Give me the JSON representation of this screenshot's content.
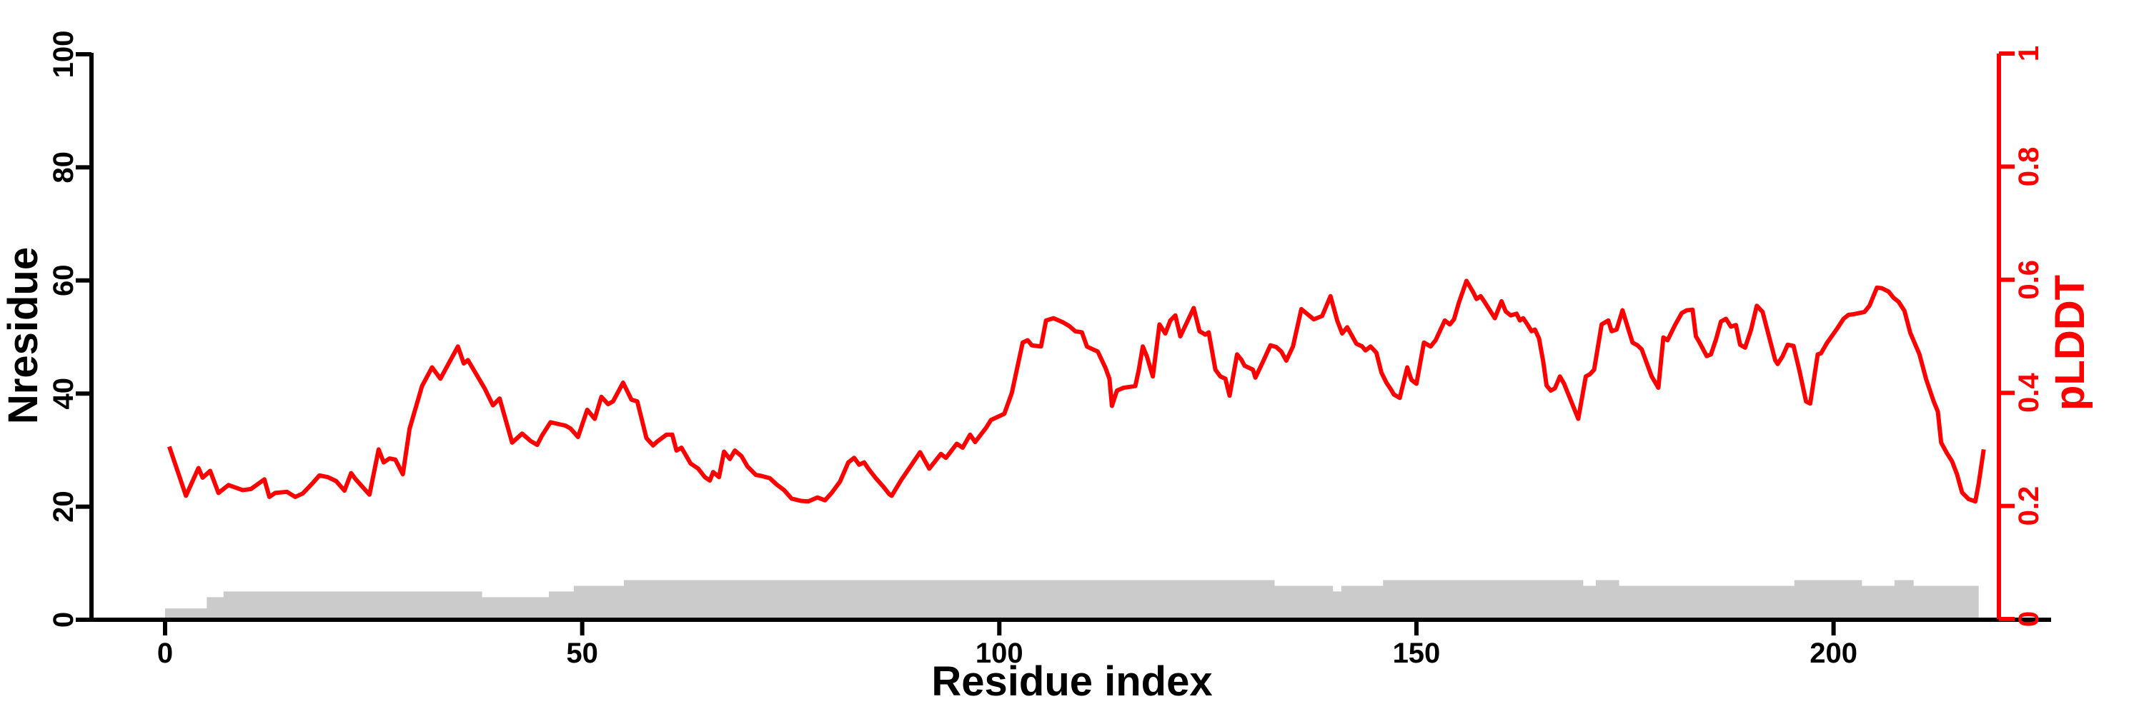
{
  "chart_data": {
    "type": "line",
    "title": "",
    "xlabel": "Residue index",
    "ylabel_left": "Nresidue",
    "ylabel_right": "pLDDT",
    "x_axis": {
      "range": [
        0,
        226
      ],
      "ticks": [
        0,
        50,
        100,
        150,
        200
      ],
      "tick_labels": [
        "0",
        "50",
        "100",
        "150",
        "200"
      ]
    },
    "y_axis_left": {
      "range": [
        0,
        100
      ],
      "ticks": [
        0,
        20,
        40,
        60,
        80,
        100
      ],
      "tick_labels": [
        "0",
        "20",
        "40",
        "60",
        "80",
        "100"
      ]
    },
    "y_axis_right": {
      "range": [
        0,
        1
      ],
      "ticks": [
        0,
        0.2,
        0.4,
        0.6,
        0.8,
        1
      ],
      "tick_labels": [
        "0",
        "0.2",
        "0.4",
        "0.6",
        "0.8",
        "1"
      ]
    },
    "grid": "off",
    "legend": "none",
    "colors": {
      "plddt_line": "#fe0000",
      "nresidue_bars": "#cbcbcb",
      "axis": "#000000",
      "background": "#ffffff"
    },
    "series": [
      {
        "name": "pLDDT",
        "axis": "right",
        "style": "line",
        "points": [
          [
            0.5,
            0.305
          ],
          [
            2.5,
            0.218
          ],
          [
            4,
            0.267
          ],
          [
            4.5,
            0.25
          ],
          [
            5.4,
            0.262
          ],
          [
            6.4,
            0.223
          ],
          [
            7.6,
            0.237
          ],
          [
            9.3,
            0.228
          ],
          [
            10.3,
            0.23
          ],
          [
            11.9,
            0.247
          ],
          [
            12.5,
            0.216
          ],
          [
            13.2,
            0.223
          ],
          [
            14.6,
            0.225
          ],
          [
            15.6,
            0.216
          ],
          [
            16.5,
            0.222
          ],
          [
            17.6,
            0.239
          ],
          [
            18.5,
            0.254
          ],
          [
            19.5,
            0.251
          ],
          [
            20.5,
            0.244
          ],
          [
            21.5,
            0.227
          ],
          [
            22.3,
            0.258
          ],
          [
            22.8,
            0.248
          ],
          [
            24.5,
            0.22
          ],
          [
            25.6,
            0.3
          ],
          [
            26.2,
            0.277
          ],
          [
            26.9,
            0.284
          ],
          [
            27.6,
            0.282
          ],
          [
            28.5,
            0.256
          ],
          [
            29.3,
            0.336
          ],
          [
            30.8,
            0.412
          ],
          [
            32,
            0.445
          ],
          [
            33,
            0.425
          ],
          [
            35.1,
            0.482
          ],
          [
            35.8,
            0.452
          ],
          [
            36.3,
            0.458
          ],
          [
            38.3,
            0.408
          ],
          [
            39.3,
            0.378
          ],
          [
            40.1,
            0.39
          ],
          [
            41.6,
            0.312
          ],
          [
            42.8,
            0.328
          ],
          [
            43.8,
            0.315
          ],
          [
            44.6,
            0.308
          ],
          [
            45.2,
            0.325
          ],
          [
            46.2,
            0.348
          ],
          [
            48,
            0.342
          ],
          [
            48.6,
            0.337
          ],
          [
            49.5,
            0.322
          ],
          [
            50.6,
            0.37
          ],
          [
            51.5,
            0.354
          ],
          [
            52.3,
            0.393
          ],
          [
            53.1,
            0.38
          ],
          [
            53.7,
            0.385
          ],
          [
            54.9,
            0.418
          ],
          [
            55.9,
            0.388
          ],
          [
            56.6,
            0.385
          ],
          [
            57.7,
            0.32
          ],
          [
            58.5,
            0.307
          ],
          [
            59,
            0.314
          ],
          [
            60.1,
            0.326
          ],
          [
            60.8,
            0.326
          ],
          [
            61.3,
            0.298
          ],
          [
            61.9,
            0.303
          ],
          [
            63,
            0.275
          ],
          [
            63.9,
            0.266
          ],
          [
            64.7,
            0.251
          ],
          [
            65.3,
            0.245
          ],
          [
            65.7,
            0.26
          ],
          [
            66.4,
            0.251
          ],
          [
            67,
            0.296
          ],
          [
            67.7,
            0.283
          ],
          [
            68.3,
            0.298
          ],
          [
            69.1,
            0.288
          ],
          [
            69.8,
            0.27
          ],
          [
            70.8,
            0.255
          ],
          [
            71.5,
            0.253
          ],
          [
            72.5,
            0.249
          ],
          [
            73.3,
            0.238
          ],
          [
            74.2,
            0.228
          ],
          [
            75.1,
            0.213
          ],
          [
            76.2,
            0.209
          ],
          [
            77.1,
            0.208
          ],
          [
            78.2,
            0.215
          ],
          [
            79.1,
            0.21
          ],
          [
            79.9,
            0.223
          ],
          [
            80.9,
            0.243
          ],
          [
            81.9,
            0.277
          ],
          [
            82.6,
            0.285
          ],
          [
            83.2,
            0.273
          ],
          [
            83.8,
            0.277
          ],
          [
            84.3,
            0.266
          ],
          [
            85.2,
            0.249
          ],
          [
            86.1,
            0.234
          ],
          [
            86.8,
            0.221
          ],
          [
            87.1,
            0.218
          ],
          [
            88.2,
            0.245
          ],
          [
            90.5,
            0.295
          ],
          [
            91.6,
            0.266
          ],
          [
            93,
            0.292
          ],
          [
            93.6,
            0.285
          ],
          [
            94.9,
            0.31
          ],
          [
            95.6,
            0.303
          ],
          [
            96.5,
            0.326
          ],
          [
            97.1,
            0.313
          ],
          [
            98.4,
            0.338
          ],
          [
            99,
            0.352
          ],
          [
            100.6,
            0.363
          ],
          [
            101.5,
            0.4
          ],
          [
            102.8,
            0.489
          ],
          [
            103.4,
            0.493
          ],
          [
            103.9,
            0.484
          ],
          [
            105,
            0.482
          ],
          [
            105.6,
            0.528
          ],
          [
            106.5,
            0.532
          ],
          [
            107.6,
            0.525
          ],
          [
            108.4,
            0.518
          ],
          [
            109.1,
            0.509
          ],
          [
            109.9,
            0.507
          ],
          [
            110.5,
            0.482
          ],
          [
            111.2,
            0.477
          ],
          [
            111.8,
            0.473
          ],
          [
            112.7,
            0.445
          ],
          [
            113.2,
            0.425
          ],
          [
            113.5,
            0.377
          ],
          [
            114.1,
            0.404
          ],
          [
            114.9,
            0.409
          ],
          [
            116.3,
            0.412
          ],
          [
            116.7,
            0.439
          ],
          [
            117.2,
            0.482
          ],
          [
            117.7,
            0.464
          ],
          [
            118.4,
            0.429
          ],
          [
            119.2,
            0.521
          ],
          [
            119.9,
            0.505
          ],
          [
            120.5,
            0.528
          ],
          [
            121.1,
            0.537
          ],
          [
            121.7,
            0.5
          ],
          [
            123.3,
            0.55
          ],
          [
            124,
            0.509
          ],
          [
            124.7,
            0.503
          ],
          [
            125.1,
            0.507
          ],
          [
            125.9,
            0.441
          ],
          [
            126.5,
            0.429
          ],
          [
            127.1,
            0.425
          ],
          [
            127.6,
            0.395
          ],
          [
            128.5,
            0.468
          ],
          [
            129,
            0.459
          ],
          [
            129.4,
            0.448
          ],
          [
            130.4,
            0.441
          ],
          [
            130.7,
            0.427
          ],
          [
            131.6,
            0.455
          ],
          [
            132.5,
            0.484
          ],
          [
            133.2,
            0.481
          ],
          [
            133.8,
            0.473
          ],
          [
            134.4,
            0.457
          ],
          [
            135.2,
            0.482
          ],
          [
            136.2,
            0.548
          ],
          [
            137.7,
            0.53
          ],
          [
            138.7,
            0.536
          ],
          [
            139.7,
            0.571
          ],
          [
            140.5,
            0.528
          ],
          [
            141.1,
            0.505
          ],
          [
            141.7,
            0.516
          ],
          [
            142.8,
            0.487
          ],
          [
            143.5,
            0.482
          ],
          [
            143.9,
            0.475
          ],
          [
            144.5,
            0.482
          ],
          [
            145.2,
            0.471
          ],
          [
            145.8,
            0.436
          ],
          [
            146.4,
            0.418
          ],
          [
            146.9,
            0.407
          ],
          [
            147.3,
            0.397
          ],
          [
            148,
            0.391
          ],
          [
            148.9,
            0.445
          ],
          [
            149.4,
            0.423
          ],
          [
            150,
            0.416
          ],
          [
            150.9,
            0.489
          ],
          [
            151.7,
            0.482
          ],
          [
            152.3,
            0.493
          ],
          [
            153.4,
            0.528
          ],
          [
            154,
            0.521
          ],
          [
            154.5,
            0.53
          ],
          [
            155.1,
            0.56
          ],
          [
            156,
            0.598
          ],
          [
            156.8,
            0.578
          ],
          [
            157.2,
            0.566
          ],
          [
            157.7,
            0.571
          ],
          [
            158.2,
            0.56
          ],
          [
            159.4,
            0.532
          ],
          [
            160.2,
            0.562
          ],
          [
            160.7,
            0.544
          ],
          [
            161.3,
            0.537
          ],
          [
            162,
            0.54
          ],
          [
            162.4,
            0.528
          ],
          [
            162.8,
            0.532
          ],
          [
            163.3,
            0.521
          ],
          [
            163.8,
            0.509
          ],
          [
            164.2,
            0.512
          ],
          [
            164.7,
            0.496
          ],
          [
            165.2,
            0.455
          ],
          [
            165.6,
            0.413
          ],
          [
            166.1,
            0.404
          ],
          [
            166.6,
            0.408
          ],
          [
            167.2,
            0.429
          ],
          [
            167.7,
            0.416
          ],
          [
            169.4,
            0.354
          ],
          [
            170.3,
            0.429
          ],
          [
            170.8,
            0.433
          ],
          [
            171.3,
            0.441
          ],
          [
            172.2,
            0.521
          ],
          [
            173,
            0.528
          ],
          [
            173.4,
            0.509
          ],
          [
            174,
            0.512
          ],
          [
            174.7,
            0.546
          ],
          [
            175.9,
            0.489
          ],
          [
            176.5,
            0.484
          ],
          [
            177,
            0.477
          ],
          [
            178.2,
            0.429
          ],
          [
            179,
            0.409
          ],
          [
            179.6,
            0.498
          ],
          [
            180.1,
            0.493
          ],
          [
            181,
            0.52
          ],
          [
            181.8,
            0.541
          ],
          [
            182.4,
            0.546
          ],
          [
            183.1,
            0.547
          ],
          [
            183.5,
            0.5
          ],
          [
            183.9,
            0.49
          ],
          [
            184.8,
            0.465
          ],
          [
            185.3,
            0.468
          ],
          [
            185.9,
            0.494
          ],
          [
            186.5,
            0.526
          ],
          [
            187.1,
            0.531
          ],
          [
            187.7,
            0.517
          ],
          [
            188.3,
            0.52
          ],
          [
            188.8,
            0.485
          ],
          [
            189.4,
            0.48
          ],
          [
            190.1,
            0.511
          ],
          [
            190.8,
            0.554
          ],
          [
            191.5,
            0.543
          ],
          [
            191.9,
            0.52
          ],
          [
            193,
            0.458
          ],
          [
            193.3,
            0.451
          ],
          [
            193.9,
            0.465
          ],
          [
            194.5,
            0.485
          ],
          [
            195.2,
            0.483
          ],
          [
            195.9,
            0.44
          ],
          [
            196.7,
            0.385
          ],
          [
            197.2,
            0.381
          ],
          [
            198.1,
            0.468
          ],
          [
            198.5,
            0.47
          ],
          [
            199.2,
            0.488
          ],
          [
            200.4,
            0.513
          ],
          [
            201.2,
            0.531
          ],
          [
            201.8,
            0.538
          ],
          [
            202.4,
            0.539
          ],
          [
            203.7,
            0.543
          ],
          [
            204.3,
            0.554
          ],
          [
            205.2,
            0.586
          ],
          [
            205.8,
            0.585
          ],
          [
            206.6,
            0.579
          ],
          [
            207.2,
            0.568
          ],
          [
            207.8,
            0.561
          ],
          [
            208.5,
            0.545
          ],
          [
            209.2,
            0.506
          ],
          [
            210.3,
            0.468
          ],
          [
            211.1,
            0.424
          ],
          [
            212,
            0.385
          ],
          [
            212.5,
            0.367
          ],
          [
            212.9,
            0.312
          ],
          [
            213.6,
            0.293
          ],
          [
            214.2,
            0.279
          ],
          [
            214.8,
            0.256
          ],
          [
            215.4,
            0.224
          ],
          [
            216.2,
            0.212
          ],
          [
            217,
            0.208
          ],
          [
            217.4,
            0.24
          ],
          [
            218,
            0.3
          ]
        ]
      },
      {
        "name": "Nresidue",
        "axis": "left",
        "style": "step-bars",
        "segments": [
          [
            0,
            5,
            2
          ],
          [
            5,
            7,
            4
          ],
          [
            7,
            38,
            5
          ],
          [
            38,
            46,
            4
          ],
          [
            46,
            49,
            5
          ],
          [
            49,
            55,
            6
          ],
          [
            55,
            133,
            7
          ],
          [
            133,
            140,
            6
          ],
          [
            140,
            141,
            5
          ],
          [
            141,
            146,
            6
          ],
          [
            146,
            170,
            7
          ],
          [
            170,
            171.5,
            6
          ],
          [
            171.5,
            174.3,
            7
          ],
          [
            174.3,
            195.3,
            6
          ],
          [
            195.3,
            203.4,
            7
          ],
          [
            203.4,
            207.3,
            6
          ],
          [
            207.3,
            209.6,
            7
          ],
          [
            209.6,
            217.4,
            6
          ]
        ]
      }
    ]
  }
}
